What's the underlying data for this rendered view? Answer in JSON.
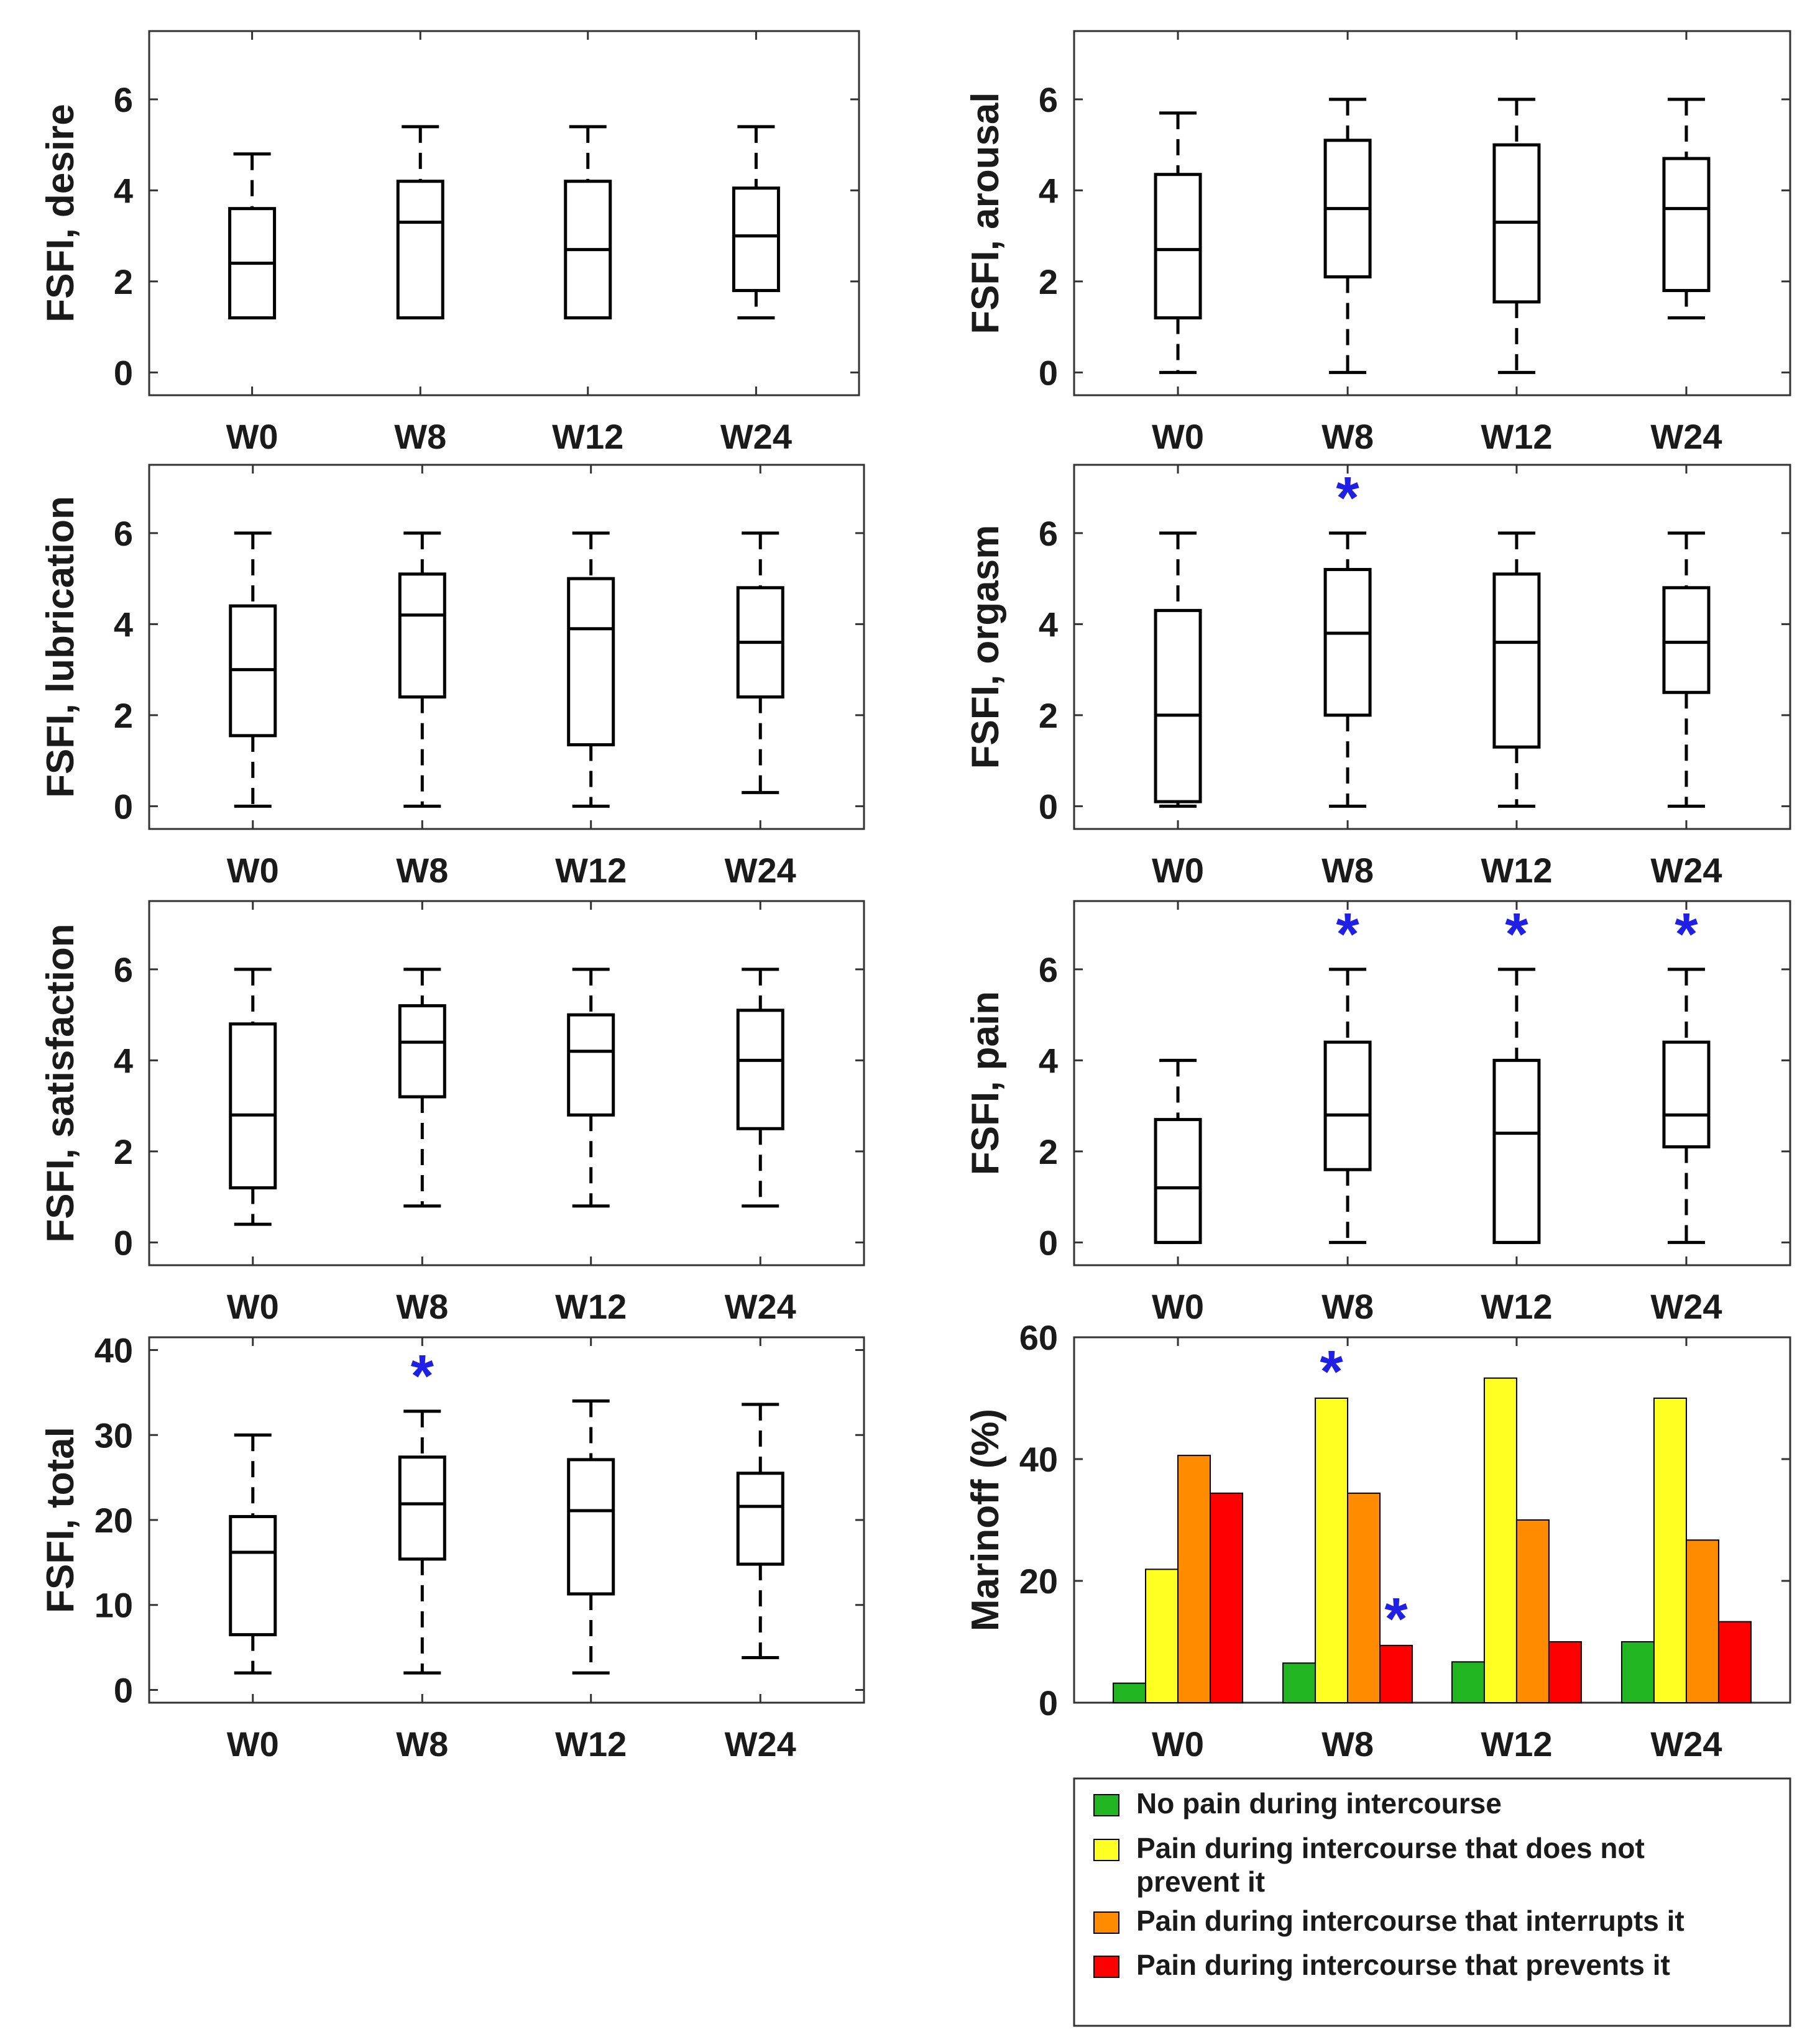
{
  "categories": [
    "W0",
    "W8",
    "W12",
    "W24"
  ],
  "colors": {
    "axis": "#333333",
    "box": "#000000",
    "star": "#1f1fe6",
    "no_pain": "#22b522",
    "pain_not_prevent": "#ffff22",
    "pain_interrupts": "#ff8c00",
    "pain_prevents": "#ff0000"
  },
  "chart_data": [
    {
      "type": "box",
      "ylabel": "FSFI, desire",
      "ylim": [
        -0.5,
        7.5
      ],
      "yticks": [
        0,
        2,
        4,
        6
      ],
      "categories": [
        "W0",
        "W8",
        "W12",
        "W24"
      ],
      "boxes": [
        {
          "min": 1.2,
          "q1": 1.2,
          "median": 2.4,
          "q3": 3.6,
          "max": 4.8
        },
        {
          "min": 1.2,
          "q1": 1.2,
          "median": 3.3,
          "q3": 4.2,
          "max": 5.4
        },
        {
          "min": 1.2,
          "q1": 1.2,
          "median": 2.7,
          "q3": 4.2,
          "max": 5.4
        },
        {
          "min": 1.2,
          "q1": 1.8,
          "median": 3.0,
          "q3": 4.05,
          "max": 5.4
        }
      ],
      "significant": []
    },
    {
      "type": "box",
      "ylabel": "FSFI, arousal",
      "ylim": [
        -0.5,
        7.5
      ],
      "yticks": [
        0,
        2,
        4,
        6
      ],
      "categories": [
        "W0",
        "W8",
        "W12",
        "W24"
      ],
      "boxes": [
        {
          "min": 0,
          "q1": 1.2,
          "median": 2.7,
          "q3": 4.35,
          "max": 5.7
        },
        {
          "min": 0,
          "q1": 2.1,
          "median": 3.6,
          "q3": 5.1,
          "max": 6
        },
        {
          "min": 0,
          "q1": 1.55,
          "median": 3.3,
          "q3": 5.0,
          "max": 6
        },
        {
          "min": 1.2,
          "q1": 1.8,
          "median": 3.6,
          "q3": 4.7,
          "max": 6
        }
      ],
      "significant": []
    },
    {
      "type": "box",
      "ylabel": "FSFI, lubrication",
      "ylim": [
        -0.5,
        7.5
      ],
      "yticks": [
        0,
        2,
        4,
        6
      ],
      "categories": [
        "W0",
        "W8",
        "W12",
        "W24"
      ],
      "boxes": [
        {
          "min": 0,
          "q1": 1.55,
          "median": 3.0,
          "q3": 4.4,
          "max": 6
        },
        {
          "min": 0,
          "q1": 2.4,
          "median": 4.2,
          "q3": 5.1,
          "max": 6
        },
        {
          "min": 0,
          "q1": 1.35,
          "median": 3.9,
          "q3": 5.0,
          "max": 6
        },
        {
          "min": 0.3,
          "q1": 2.4,
          "median": 3.6,
          "q3": 4.8,
          "max": 6
        }
      ],
      "significant": []
    },
    {
      "type": "box",
      "ylabel": "FSFI, orgasm",
      "ylim": [
        -0.5,
        7.5
      ],
      "yticks": [
        0,
        2,
        4,
        6
      ],
      "categories": [
        "W0",
        "W8",
        "W12",
        "W24"
      ],
      "boxes": [
        {
          "min": 0,
          "q1": 0.1,
          "median": 2.0,
          "q3": 4.3,
          "max": 6
        },
        {
          "min": 0,
          "q1": 2.0,
          "median": 3.8,
          "q3": 5.2,
          "max": 6
        },
        {
          "min": 0,
          "q1": 1.3,
          "median": 3.6,
          "q3": 5.1,
          "max": 6
        },
        {
          "min": 0,
          "q1": 2.5,
          "median": 3.6,
          "q3": 4.8,
          "max": 6
        }
      ],
      "significant": [
        "W8"
      ]
    },
    {
      "type": "box",
      "ylabel": "FSFI, satisfaction",
      "ylim": [
        -0.5,
        7.5
      ],
      "yticks": [
        0,
        2,
        4,
        6
      ],
      "categories": [
        "W0",
        "W8",
        "W12",
        "W24"
      ],
      "boxes": [
        {
          "min": 0.4,
          "q1": 1.2,
          "median": 2.8,
          "q3": 4.8,
          "max": 6
        },
        {
          "min": 0.8,
          "q1": 3.2,
          "median": 4.4,
          "q3": 5.2,
          "max": 6
        },
        {
          "min": 0.8,
          "q1": 2.8,
          "median": 4.2,
          "q3": 5.0,
          "max": 6
        },
        {
          "min": 0.8,
          "q1": 2.5,
          "median": 4.0,
          "q3": 5.1,
          "max": 6
        }
      ],
      "significant": []
    },
    {
      "type": "box",
      "ylabel": "FSFI, pain",
      "ylim": [
        -0.5,
        7.5
      ],
      "yticks": [
        0,
        2,
        4,
        6
      ],
      "categories": [
        "W0",
        "W8",
        "W12",
        "W24"
      ],
      "boxes": [
        {
          "min": 0,
          "q1": 0,
          "median": 1.2,
          "q3": 2.7,
          "max": 4
        },
        {
          "min": 0,
          "q1": 1.6,
          "median": 2.8,
          "q3": 4.4,
          "max": 6
        },
        {
          "min": 0,
          "q1": 0,
          "median": 2.4,
          "q3": 4.0,
          "max": 6
        },
        {
          "min": 0,
          "q1": 2.1,
          "median": 2.8,
          "q3": 4.4,
          "max": 6
        }
      ],
      "significant": [
        "W8",
        "W12",
        "W24"
      ]
    },
    {
      "type": "box",
      "ylabel": "FSFI, total",
      "ylim": [
        -1.5,
        41.5
      ],
      "yticks": [
        0,
        10,
        20,
        30,
        40
      ],
      "categories": [
        "W0",
        "W8",
        "W12",
        "W24"
      ],
      "boxes": [
        {
          "min": 2,
          "q1": 6.5,
          "median": 16.2,
          "q3": 20.4,
          "max": 30
        },
        {
          "min": 2,
          "q1": 15.4,
          "median": 21.9,
          "q3": 27.4,
          "max": 32.8
        },
        {
          "min": 2,
          "q1": 11.3,
          "median": 21.1,
          "q3": 27.1,
          "max": 34
        },
        {
          "min": 3.8,
          "q1": 14.8,
          "median": 21.6,
          "q3": 25.5,
          "max": 33.6
        }
      ],
      "significant": [
        "W8"
      ]
    },
    {
      "type": "bar",
      "ylabel": "Marinoff (%)",
      "ylim": [
        0,
        60
      ],
      "yticks": [
        0,
        20,
        40,
        60
      ],
      "categories": [
        "W0",
        "W8",
        "W12",
        "W24"
      ],
      "series": [
        {
          "name": "No pain during intercourse",
          "values": [
            3.2,
            6.5,
            6.7,
            10
          ],
          "significant": []
        },
        {
          "name": "Pain during intercourse that does not prevent it",
          "values": [
            21.9,
            50,
            53.3,
            50
          ],
          "significant": [
            "W8"
          ]
        },
        {
          "name": "Pain during intercourse that interrupts it",
          "values": [
            40.6,
            34.4,
            30,
            26.7
          ],
          "significant": []
        },
        {
          "name": "Pain during intercourse that prevents it",
          "values": [
            34.4,
            9.4,
            10,
            13.3
          ],
          "significant": [
            "W8"
          ]
        }
      ],
      "legend": {
        "position": "bottom",
        "entries": [
          [
            "No pain during intercourse"
          ],
          [
            "Pain during intercourse that does not",
            "prevent it"
          ],
          [
            "Pain during intercourse that interrupts it"
          ],
          [
            "Pain during intercourse that prevents it"
          ]
        ]
      }
    }
  ]
}
